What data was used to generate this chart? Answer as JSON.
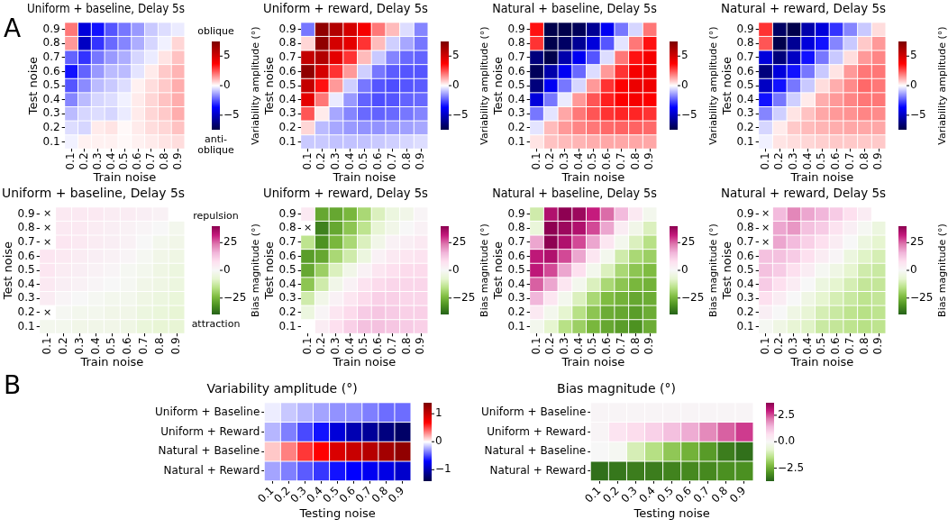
{
  "chart_data": [
    {
      "type": "heatmap",
      "title": "Uniform + baseline, Delay 5s",
      "xlabel": "Train noise",
      "ylabel": "Test noise",
      "clabel": "Variability amplitude (°)",
      "annotations": [
        "A",
        "oblique",
        "anti-oblique"
      ],
      "categories": [
        "0.1",
        "0.2",
        "0.3",
        "0.4",
        "0.5",
        "0.6",
        "0.7",
        "0.8",
        "0.9"
      ],
      "y_categories": [
        "0.9",
        "0.8",
        "0.7",
        "0.6",
        "0.5",
        "0.4",
        "0.3",
        "0.2",
        "0.1"
      ],
      "clim": [
        -7.5,
        7.5
      ],
      "cticks": [
        5,
        0,
        {
          "value": -5,
          "label": "−5"
        }
      ],
      "colors": [
        "#00004c",
        "#0000ff",
        "#ffffff",
        "#ff0000",
        "#7f0000"
      ],
      "cells": [
        [
          2,
          -4.5,
          -3.5,
          -2.5,
          -2,
          -1.5,
          -0.8,
          -0.5,
          -0.3
        ],
        [
          1.5,
          -5,
          -3,
          -2.2,
          -1.8,
          -1.2,
          -0.6,
          -0.2,
          0.6
        ],
        [
          -2.3,
          -3,
          -2,
          -1.5,
          -1.2,
          -0.6,
          -0.3,
          0.4,
          0.9
        ],
        [
          -3.5,
          -2.3,
          -1.5,
          -1,
          -1,
          -0.4,
          0.3,
          0.8,
          1.1
        ],
        [
          -2.5,
          -1.7,
          -1,
          -0.8,
          -0.5,
          0.2,
          0.5,
          0.8,
          1.2
        ],
        [
          -1.8,
          -1,
          -0.6,
          -0.5,
          -0.2,
          0.3,
          0.6,
          0.9,
          1.2
        ],
        [
          -1,
          -0.6,
          -0.5,
          -0.6,
          -0.3,
          0.3,
          0.6,
          0.8,
          1.2
        ],
        [
          -0.5,
          -0.6,
          0.3,
          0.4,
          0.1,
          0.3,
          0.5,
          0.6,
          0.9
        ],
        [
          -0.2,
          0.2,
          0.2,
          0.2,
          0.1,
          0.2,
          0.3,
          0.4,
          0.5
        ]
      ]
    },
    {
      "type": "heatmap",
      "title": "Uniform + reward, Delay 5s",
      "xlabel": "Train noise",
      "ylabel": "Test noise",
      "clabel": "Variability amplitude (°)",
      "categories": [
        "0.1",
        "0.2",
        "0.3",
        "0.4",
        "0.5",
        "0.6",
        "0.7",
        "0.8",
        "0.9"
      ],
      "y_categories": [
        "0.9",
        "0.8",
        "0.7",
        "0.6",
        "0.5",
        "0.4",
        "0.3",
        "0.2",
        "0.1"
      ],
      "clim": [
        -7.5,
        7.5
      ],
      "cticks": [
        5,
        0,
        {
          "value": -5,
          "label": "−5"
        }
      ],
      "colors": [
        "#00004c",
        "#0000ff",
        "#ffffff",
        "#ff0000",
        "#7f0000"
      ],
      "cells": [
        [
          -2,
          7,
          6,
          5,
          4,
          2,
          1,
          -0.5,
          -1.8
        ],
        [
          0.6,
          7,
          5,
          4.5,
          3,
          1,
          -0.7,
          -1.3,
          -2
        ],
        [
          5.5,
          6,
          4.5,
          3,
          1,
          -0.8,
          -1.8,
          -2.2,
          -2.3
        ],
        [
          7,
          5,
          3,
          1.5,
          -0.7,
          -2,
          -2.4,
          -2.5,
          -2.5
        ],
        [
          5.5,
          3.5,
          1.5,
          -0.7,
          -2,
          -2.5,
          -2.6,
          -2.5,
          -2.4
        ],
        [
          4.5,
          2,
          -0.3,
          -1.5,
          -2.3,
          -2.6,
          -2.5,
          -2.3,
          -2.2
        ],
        [
          2.5,
          0.3,
          -1.3,
          -1.8,
          -2.2,
          -2.3,
          -2.2,
          -2,
          -1.8
        ],
        [
          0.6,
          -1,
          -1.3,
          -1.5,
          -1.6,
          -1.6,
          -1.5,
          -1.4,
          -1.3
        ],
        [
          -0.8,
          -0.8,
          -0.9,
          -0.9,
          -0.9,
          -0.8,
          -0.7,
          -0.6,
          -0.5
        ]
      ]
    },
    {
      "type": "heatmap",
      "title": "Natural + baseline, Delay 5s",
      "xlabel": "Train noise",
      "ylabel": "Test noise",
      "clabel": "Variability amplitude (°)",
      "categories": [
        "0.1",
        "0.2",
        "0.3",
        "0.4",
        "0.5",
        "0.6",
        "0.7",
        "0.8",
        "0.9"
      ],
      "y_categories": [
        "0.9",
        "0.8",
        "0.7",
        "0.6",
        "0.5",
        "0.4",
        "0.3",
        "0.2",
        "0.1"
      ],
      "clim": [
        -7.5,
        7.5
      ],
      "cticks": [
        5,
        0,
        {
          "value": -5,
          "label": "−5"
        }
      ],
      "colors": [
        "#00004c",
        "#0000ff",
        "#ffffff",
        "#ff0000",
        "#7f0000"
      ],
      "cells": [
        [
          3.5,
          -7.5,
          -7.5,
          -7.2,
          -6,
          -4,
          -2,
          -0.6,
          2
        ],
        [
          3,
          -7.5,
          -7,
          -6,
          -4.5,
          -2.5,
          -0.4,
          2,
          3.5
        ],
        [
          -6.5,
          -7.5,
          -5.5,
          -4,
          -2.5,
          -0.5,
          2,
          3.5,
          4
        ],
        [
          -7.2,
          -5.5,
          -4,
          -2.2,
          -0.5,
          1.5,
          3,
          4,
          4.2
        ],
        [
          -6.5,
          -4,
          -2,
          -0.6,
          1.5,
          3,
          3.8,
          4.3,
          4.2
        ],
        [
          -4.5,
          -2,
          -0.3,
          1.5,
          2.5,
          3.3,
          3.8,
          4,
          3.8
        ],
        [
          -2,
          -0.4,
          1.3,
          2,
          2.5,
          3,
          3.2,
          3.2,
          3
        ],
        [
          -0.4,
          1,
          1.5,
          1.8,
          2,
          2.2,
          2.3,
          2.3,
          2.2
        ],
        [
          0.4,
          0.9,
          1,
          1.1,
          1.2,
          1.3,
          1.3,
          1.3,
          1.3
        ]
      ]
    },
    {
      "type": "heatmap",
      "title": "Natural + reward, Delay 5s",
      "xlabel": "Train noise",
      "ylabel": "Test noise",
      "clabel": "Variability amplitude (°)",
      "categories": [
        "0.1",
        "0.2",
        "0.3",
        "0.4",
        "0.5",
        "0.6",
        "0.7",
        "0.8",
        "0.9"
      ],
      "y_categories": [
        "0.9",
        "0.8",
        "0.7",
        "0.6",
        "0.5",
        "0.4",
        "0.3",
        "0.2",
        "0.1"
      ],
      "clim": [
        -7.5,
        7.5
      ],
      "cticks": [
        5,
        0,
        {
          "value": -5,
          "label": "−5"
        }
      ],
      "colors": [
        "#00004c",
        "#0000ff",
        "#ffffff",
        "#ff0000",
        "#7f0000"
      ],
      "cells": [
        [
          3,
          -7,
          -7.5,
          -5.5,
          -4.5,
          -3,
          -1.8,
          -0.8,
          0.5
        ],
        [
          2.5,
          -7.5,
          -6,
          -4.5,
          -3.5,
          -1.8,
          -0.8,
          0.8,
          1.5
        ],
        [
          -4.5,
          -6.5,
          -5,
          -3.5,
          -2,
          -0.8,
          0.5,
          1.5,
          1.8
        ],
        [
          -6.5,
          -4.5,
          -3.5,
          -2,
          -0.8,
          0.4,
          1.5,
          2,
          2
        ],
        [
          -5,
          -3.5,
          -2,
          -0.8,
          0.5,
          1.2,
          1.7,
          2.2,
          2
        ],
        [
          -3.5,
          -2,
          -0.7,
          0.3,
          1.2,
          1.5,
          1.8,
          2,
          2
        ],
        [
          -1.8,
          -0.7,
          0.4,
          0.9,
          1.3,
          1.5,
          1.6,
          1.8,
          1.7
        ],
        [
          -0.6,
          0.3,
          0.8,
          1,
          1.1,
          1.2,
          1.3,
          1.3,
          1.3
        ],
        [
          -0.2,
          0.4,
          0.5,
          0.6,
          0.7,
          0.8,
          0.8,
          0.8,
          0.8
        ]
      ]
    },
    {
      "type": "heatmap",
      "title": "Uniform + baseline, Delay 5s",
      "xlabel": "Train noise",
      "ylabel": "Test noise",
      "clabel": "Bias magnitude (°)",
      "annotations": [
        "repulsion",
        "attraction"
      ],
      "cell_labels": [
        [
          "×",
          null,
          null,
          null,
          null,
          null,
          null,
          null,
          null
        ],
        [
          "×",
          null,
          null,
          null,
          null,
          null,
          null,
          null,
          null
        ],
        [
          "×",
          null,
          null,
          null,
          null,
          null,
          null,
          null,
          null
        ],
        [
          null,
          null,
          null,
          null,
          null,
          null,
          null,
          null,
          null
        ],
        [
          null,
          null,
          null,
          null,
          null,
          null,
          null,
          null,
          null
        ],
        [
          null,
          null,
          null,
          null,
          null,
          null,
          null,
          null,
          null
        ],
        [
          null,
          null,
          null,
          null,
          null,
          null,
          null,
          null,
          null
        ],
        [
          "×",
          null,
          null,
          null,
          null,
          null,
          null,
          null,
          null
        ],
        [
          null,
          null,
          null,
          null,
          null,
          null,
          null,
          null,
          null
        ]
      ],
      "categories": [
        "0.1",
        "0.2",
        "0.3",
        "0.4",
        "0.5",
        "0.6",
        "0.7",
        "0.8",
        "0.9"
      ],
      "y_categories": [
        "0.9",
        "0.8",
        "0.7",
        "0.6",
        "0.5",
        "0.4",
        "0.3",
        "0.2",
        "0.1"
      ],
      "clim": [
        -40,
        40
      ],
      "cticks": [
        25,
        0,
        {
          "value": -25,
          "label": "−25"
        }
      ],
      "colors": [
        "#276419",
        "#4d9221",
        "#7fbc41",
        "#b8e186",
        "#e6f5d0",
        "#f7f7f7",
        "#fde0ef",
        "#f1b6da",
        "#de77ae",
        "#c51b7d",
        "#8e0152"
      ],
      "cells": [
        [
          null,
          5,
          5,
          5,
          4,
          4,
          3,
          2,
          null
        ],
        [
          null,
          5,
          5,
          4,
          3,
          2,
          1,
          0,
          -2
        ],
        [
          null,
          6,
          5,
          4,
          3,
          2,
          0,
          -2,
          -3
        ],
        [
          6,
          5,
          4,
          3,
          2,
          1,
          -1,
          -3,
          -4
        ],
        [
          6,
          4,
          3,
          2,
          1,
          -1,
          -2,
          -4,
          -5
        ],
        [
          5,
          3,
          2,
          1,
          0,
          -1,
          -3,
          -4,
          -5
        ],
        [
          4,
          1,
          0,
          -1,
          -2,
          -2,
          -4,
          -5,
          -6
        ],
        [
          null,
          -1,
          -2,
          -2,
          -3,
          -3,
          -5,
          -6,
          -7
        ],
        [
          -2,
          -2,
          -3,
          -3,
          -3,
          -4,
          -6,
          -7,
          -7
        ]
      ]
    },
    {
      "type": "heatmap",
      "title": "Uniform + reward, Delay 5s",
      "xlabel": "Train noise",
      "ylabel": "Test noise",
      "clabel": "Bias magnitude (°)",
      "cell_labels": [
        [
          null,
          null,
          null,
          null,
          null,
          null,
          null,
          null,
          null
        ],
        [
          "×",
          null,
          null,
          null,
          null,
          null,
          null,
          null,
          null
        ],
        [
          null,
          null,
          null,
          null,
          null,
          null,
          null,
          null,
          null
        ],
        [
          null,
          null,
          null,
          null,
          null,
          null,
          null,
          null,
          null
        ],
        [
          null,
          null,
          null,
          null,
          null,
          null,
          null,
          null,
          null
        ],
        [
          null,
          null,
          null,
          null,
          null,
          null,
          null,
          null,
          null
        ],
        [
          null,
          null,
          null,
          null,
          null,
          null,
          null,
          null,
          null
        ],
        [
          null,
          null,
          null,
          null,
          null,
          null,
          null,
          null,
          null
        ],
        [
          null,
          null,
          null,
          null,
          null,
          null,
          null,
          null,
          null
        ]
      ],
      "categories": [
        "0.1",
        "0.2",
        "0.3",
        "0.4",
        "0.5",
        "0.6",
        "0.7",
        "0.8",
        "0.9"
      ],
      "y_categories": [
        "0.9",
        "0.8",
        "0.7",
        "0.6",
        "0.5",
        "0.4",
        "0.3",
        "0.2",
        "0.1"
      ],
      "clim": [
        -40,
        40
      ],
      "cticks": [
        25,
        0,
        {
          "value": -25,
          "label": "−25"
        }
      ],
      "colors": [
        "#276419",
        "#4d9221",
        "#7fbc41",
        "#b8e186",
        "#e6f5d0",
        "#f7f7f7",
        "#fde0ef",
        "#f1b6da",
        "#de77ae",
        "#c51b7d",
        "#8e0152"
      ],
      "cells": [
        [
          5,
          -28,
          -28,
          -25,
          -18,
          -10,
          -5,
          -3,
          1
        ],
        [
          null,
          -35,
          -28,
          -22,
          -15,
          -7,
          -3,
          0,
          2
        ],
        [
          -15,
          -32,
          -25,
          -18,
          -10,
          -3,
          2,
          3,
          5
        ],
        [
          -30,
          -28,
          -18,
          -12,
          -5,
          2,
          5,
          6,
          7
        ],
        [
          -28,
          -20,
          -10,
          -3,
          2,
          6,
          8,
          9,
          9
        ],
        [
          -22,
          -12,
          -3,
          2,
          7,
          9,
          10,
          10,
          10
        ],
        [
          -12,
          -3,
          2,
          6,
          9,
          11,
          11,
          10,
          10
        ],
        [
          -5,
          1,
          6,
          9,
          12,
          13,
          12,
          11,
          11
        ],
        [
          null,
          4,
          8,
          11,
          14,
          14,
          13,
          12,
          11
        ]
      ]
    },
    {
      "type": "heatmap",
      "title": "Natural + baseline, Delay 5s",
      "xlabel": "Train noise",
      "ylabel": "Test noise",
      "clabel": "Bias magnitude (°)",
      "categories": [
        "0.1",
        "0.2",
        "0.3",
        "0.4",
        "0.5",
        "0.6",
        "0.7",
        "0.8",
        "0.9"
      ],
      "y_categories": [
        "0.9",
        "0.8",
        "0.7",
        "0.6",
        "0.5",
        "0.4",
        "0.3",
        "0.2",
        "0.1"
      ],
      "clim": [
        -40,
        40
      ],
      "cticks": [
        25,
        0,
        {
          "value": -25,
          "label": "−25"
        }
      ],
      "colors": [
        "#276419",
        "#4d9221",
        "#7fbc41",
        "#b8e186",
        "#e6f5d0",
        "#f7f7f7",
        "#fde0ef",
        "#f1b6da",
        "#de77ae",
        "#c51b7d",
        "#8e0152"
      ],
      "cells": [
        [
          -12,
          35,
          40,
          38,
          32,
          25,
          15,
          5,
          -2
        ],
        [
          -6,
          40,
          38,
          35,
          28,
          18,
          4,
          -3,
          -10
        ],
        [
          18,
          40,
          35,
          28,
          18,
          6,
          -2,
          -10,
          -16
        ],
        [
          33,
          35,
          28,
          18,
          6,
          -2,
          -12,
          -18,
          -20
        ],
        [
          33,
          28,
          18,
          8,
          -2,
          -10,
          -18,
          -22,
          -24
        ],
        [
          26,
          18,
          6,
          -2,
          -10,
          -18,
          -22,
          -25,
          -26
        ],
        [
          16,
          6,
          -2,
          -10,
          -18,
          -24,
          -26,
          -28,
          -27
        ],
        [
          5,
          -2,
          -8,
          -16,
          -22,
          -27,
          -28,
          -30,
          -27
        ],
        [
          -2,
          -8,
          -16,
          -20,
          -25,
          -28,
          -30,
          -32,
          -27
        ]
      ]
    },
    {
      "type": "heatmap",
      "title": "Natural + reward, Delay 5s",
      "xlabel": "Train noise",
      "ylabel": "Test noise",
      "clabel": "Bias magnitude (°)",
      "cell_labels": [
        [
          "×",
          null,
          null,
          null,
          null,
          null,
          null,
          null,
          null
        ],
        [
          "×",
          null,
          null,
          null,
          null,
          null,
          null,
          null,
          null
        ],
        [
          "×",
          null,
          null,
          null,
          null,
          null,
          null,
          null,
          null
        ],
        [
          null,
          null,
          null,
          null,
          null,
          null,
          null,
          null,
          null
        ],
        [
          null,
          null,
          null,
          null,
          null,
          null,
          null,
          null,
          null
        ],
        [
          null,
          null,
          null,
          null,
          null,
          null,
          null,
          null,
          null
        ],
        [
          null,
          null,
          null,
          null,
          null,
          null,
          null,
          null,
          null
        ],
        [
          null,
          null,
          null,
          null,
          null,
          null,
          null,
          null,
          null
        ],
        [
          null,
          null,
          null,
          null,
          null,
          null,
          null,
          null,
          null
        ]
      ],
      "categories": [
        "0.1",
        "0.2",
        "0.3",
        "0.4",
        "0.5",
        "0.6",
        "0.7",
        "0.8",
        "0.9"
      ],
      "y_categories": [
        "0.9",
        "0.8",
        "0.7",
        "0.6",
        "0.5",
        "0.4",
        "0.3",
        "0.2",
        "0.1"
      ],
      "clim": [
        -40,
        40
      ],
      "cticks": [
        25,
        0,
        {
          "value": -25,
          "label": "−25"
        }
      ],
      "colors": [
        "#276419",
        "#4d9221",
        "#7fbc41",
        "#b8e186",
        "#e6f5d0",
        "#f7f7f7",
        "#fde0ef",
        "#f1b6da",
        "#de77ae",
        "#c51b7d",
        "#8e0152"
      ],
      "cells": [
        [
          null,
          15,
          22,
          18,
          16,
          12,
          8,
          4,
          null
        ],
        [
          null,
          18,
          20,
          14,
          12,
          7,
          3,
          -1,
          -5
        ],
        [
          null,
          18,
          15,
          11,
          8,
          4,
          0,
          -5,
          -8
        ],
        [
          14,
          14,
          12,
          8,
          4,
          1,
          -5,
          -9,
          -11
        ],
        [
          14,
          12,
          8,
          4,
          -1,
          -4,
          -8,
          -12,
          -13
        ],
        [
          12,
          8,
          4,
          0,
          -5,
          -8,
          -11,
          -14,
          -14
        ],
        [
          8,
          4,
          0,
          -4,
          -8,
          -11,
          -13,
          -15,
          -14
        ],
        [
          3,
          0,
          -4,
          -7,
          -11,
          -13,
          -15,
          -16,
          -15
        ],
        [
          -1,
          -4,
          -7,
          -9,
          -13,
          -14,
          -15,
          -16,
          -15
        ]
      ]
    },
    {
      "type": "heatmap",
      "title": "Variability amplitude (°)",
      "xlabel": "Testing noise",
      "annotations": [
        "B"
      ],
      "categories": [
        "0.1",
        "0.2",
        "0.3",
        "0.4",
        "0.5",
        "0.6",
        "0.7",
        "0.8",
        "0.9"
      ],
      "y_categories": [
        "Uniform + Baseline",
        "Uniform + Reward",
        "Natural + Baseline",
        "Natural + Reward"
      ],
      "clim": [
        -1.4,
        1.4
      ],
      "cticks": [
        1,
        0,
        {
          "value": -1,
          "label": "−1"
        }
      ],
      "colors": [
        "#00004c",
        "#0000ff",
        "#ffffff",
        "#ff0000",
        "#7f0000"
      ],
      "cells": [
        [
          -0.05,
          -0.15,
          -0.2,
          -0.25,
          -0.3,
          -0.3,
          -0.35,
          -0.4,
          -0.4
        ],
        [
          -0.2,
          -0.35,
          -0.5,
          -0.65,
          -0.85,
          -1,
          -1.1,
          -1.2,
          -1.3
        ],
        [
          0.15,
          0.35,
          0.55,
          0.7,
          0.9,
          1,
          1.1,
          1.2,
          1.3
        ],
        [
          -0.25,
          -0.35,
          -0.45,
          -0.55,
          -0.65,
          -0.7,
          -0.75,
          -0.8,
          -0.9
        ]
      ]
    },
    {
      "type": "heatmap",
      "title": "Bias magnitude (°)",
      "xlabel": "Testing noise",
      "categories": [
        "0.1",
        "0.2",
        "0.3",
        "0.4",
        "0.5",
        "0.6",
        "0.7",
        "0.8",
        "0.9"
      ],
      "y_categories": [
        "Uniform + Baseline",
        "Uniform + Reward",
        "Natural + Baseline",
        "Natural + Reward"
      ],
      "clim": [
        -3.7,
        3.7
      ],
      "cticks": [
        {
          "value": 2.5,
          "label": "2.5"
        },
        {
          "value": 0,
          "label": "0.0"
        },
        {
          "value": -2.5,
          "label": "−2.5"
        }
      ],
      "colors": [
        "#276419",
        "#4d9221",
        "#7fbc41",
        "#b8e186",
        "#e6f5d0",
        "#f7f7f7",
        "#fde0ef",
        "#f1b6da",
        "#de77ae",
        "#c51b7d",
        "#8e0152"
      ],
      "cells": [
        [
          0.1,
          0.1,
          0.1,
          0.1,
          0.1,
          0.1,
          0.1,
          0.1,
          0.1
        ],
        [
          0.1,
          0.6,
          0.8,
          1,
          1.3,
          1.6,
          2,
          2.4,
          2.7
        ],
        [
          0,
          -0.1,
          -1,
          -1.5,
          -2,
          -2.4,
          -2.8,
          -3.3,
          -3.5
        ],
        [
          -3.5,
          -3.4,
          -3.3,
          -3.3,
          -3.2,
          -3.1,
          -3.1,
          -3,
          -3
        ]
      ]
    }
  ]
}
